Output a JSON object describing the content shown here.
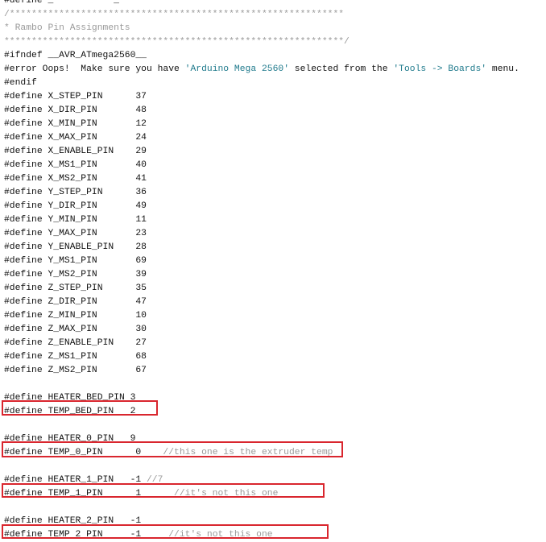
{
  "editor": {
    "highlight_color": "#d9262e",
    "lines": [
      [
        {
          "t": "#define _           _",
          "k": ""
        }
      ],
      [
        {
          "t": "/*************************************************************",
          "k": "c"
        }
      ],
      [
        {
          "t": "* Rambo Pin Assignments",
          "k": "c"
        }
      ],
      [
        {
          "t": "**************************************************************/",
          "k": "c"
        }
      ],
      [
        {
          "t": "#ifndef __AVR_ATmega2560__",
          "k": ""
        }
      ],
      [
        {
          "t": "#error Oops!  Make sure you have ",
          "k": ""
        },
        {
          "t": "'Arduino Mega 2560'",
          "k": "s"
        },
        {
          "t": " selected from the ",
          "k": ""
        },
        {
          "t": "'Tools -> Boards'",
          "k": "s"
        },
        {
          "t": " menu.",
          "k": ""
        }
      ],
      [
        {
          "t": "#endif",
          "k": ""
        }
      ],
      [
        {
          "t": "#define X_STEP_PIN      37",
          "k": ""
        }
      ],
      [
        {
          "t": "#define X_DIR_PIN       48",
          "k": ""
        }
      ],
      [
        {
          "t": "#define X_MIN_PIN       12",
          "k": ""
        }
      ],
      [
        {
          "t": "#define X_MAX_PIN       24",
          "k": ""
        }
      ],
      [
        {
          "t": "#define X_ENABLE_PIN    29",
          "k": ""
        }
      ],
      [
        {
          "t": "#define X_MS1_PIN       40",
          "k": ""
        }
      ],
      [
        {
          "t": "#define X_MS2_PIN       41",
          "k": ""
        }
      ],
      [
        {
          "t": "#define Y_STEP_PIN      36",
          "k": ""
        }
      ],
      [
        {
          "t": "#define Y_DIR_PIN       49",
          "k": ""
        }
      ],
      [
        {
          "t": "#define Y_MIN_PIN       11",
          "k": ""
        }
      ],
      [
        {
          "t": "#define Y_MAX_PIN       23",
          "k": ""
        }
      ],
      [
        {
          "t": "#define Y_ENABLE_PIN    28",
          "k": ""
        }
      ],
      [
        {
          "t": "#define Y_MS1_PIN       69",
          "k": ""
        }
      ],
      [
        {
          "t": "#define Y_MS2_PIN       39",
          "k": ""
        }
      ],
      [
        {
          "t": "#define Z_STEP_PIN      35",
          "k": ""
        }
      ],
      [
        {
          "t": "#define Z_DIR_PIN       47",
          "k": ""
        }
      ],
      [
        {
          "t": "#define Z_MIN_PIN       10",
          "k": ""
        }
      ],
      [
        {
          "t": "#define Z_MAX_PIN       30",
          "k": ""
        }
      ],
      [
        {
          "t": "#define Z_ENABLE_PIN    27",
          "k": ""
        }
      ],
      [
        {
          "t": "#define Z_MS1_PIN       68",
          "k": ""
        }
      ],
      [
        {
          "t": "#define Z_MS2_PIN       67",
          "k": ""
        }
      ],
      [
        {
          "t": "",
          "k": ""
        }
      ],
      [
        {
          "t": "#define HEATER_BED_PIN 3",
          "k": ""
        }
      ],
      [
        {
          "t": "#define TEMP_BED_PIN   2",
          "k": ""
        }
      ],
      [
        {
          "t": "",
          "k": ""
        }
      ],
      [
        {
          "t": "#define HEATER_0_PIN   9",
          "k": ""
        }
      ],
      [
        {
          "t": "#define TEMP_0_PIN      0    ",
          "k": ""
        },
        {
          "t": "//this one is the extruder temp",
          "k": "c"
        }
      ],
      [
        {
          "t": "",
          "k": ""
        }
      ],
      [
        {
          "t": "#define HEATER_1_PIN   -1 ",
          "k": ""
        },
        {
          "t": "//7",
          "k": "c"
        }
      ],
      [
        {
          "t": "#define TEMP_1_PIN      1      ",
          "k": ""
        },
        {
          "t": "//it's not this one",
          "k": "c"
        }
      ],
      [
        {
          "t": "",
          "k": ""
        }
      ],
      [
        {
          "t": "#define HEATER_2_PIN   -1",
          "k": ""
        }
      ],
      [
        {
          "t": "#define TEMP 2 PIN     -1     ",
          "k": ""
        },
        {
          "t": "//it's not this one",
          "k": "c"
        }
      ]
    ]
  }
}
